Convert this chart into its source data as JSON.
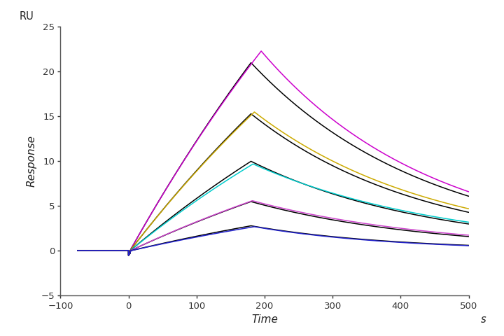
{
  "xlabel": "Time",
  "ylabel": "Response",
  "ylabel_top": "RU",
  "xlabel_right": "s",
  "xlim": [
    -100,
    500
  ],
  "ylim": [
    -5,
    25
  ],
  "xticks": [
    -100,
    0,
    100,
    200,
    300,
    400,
    500
  ],
  "yticks": [
    -5,
    0,
    5,
    10,
    15,
    20,
    25
  ],
  "background_color": "#ffffff",
  "curves": [
    {
      "color": "#000000",
      "peak": 21.0,
      "peak_time": 180,
      "end_val": 6.1,
      "tau_assoc": 3.5,
      "tau_dissoc": 0.8
    },
    {
      "color": "#cc00cc",
      "peak": 22.3,
      "peak_time": 195,
      "end_val": 6.6,
      "tau_assoc": 3.0,
      "tau_dissoc": 0.75
    },
    {
      "color": "#000000",
      "peak": 15.3,
      "peak_time": 180,
      "end_val": 4.3,
      "tau_assoc": 3.5,
      "tau_dissoc": 0.8
    },
    {
      "color": "#ccaa00",
      "peak": 15.5,
      "peak_time": 185,
      "end_val": 4.7,
      "tau_assoc": 3.2,
      "tau_dissoc": 0.78
    },
    {
      "color": "#000000",
      "peak": 10.0,
      "peak_time": 180,
      "end_val": 3.0,
      "tau_assoc": 3.5,
      "tau_dissoc": 0.8
    },
    {
      "color": "#00cccc",
      "peak": 9.7,
      "peak_time": 183,
      "end_val": 3.2,
      "tau_assoc": 3.3,
      "tau_dissoc": 0.77
    },
    {
      "color": "#000000",
      "peak": 5.5,
      "peak_time": 180,
      "end_val": 1.6,
      "tau_assoc": 3.5,
      "tau_dissoc": 0.8
    },
    {
      "color": "#cc44cc",
      "peak": 5.6,
      "peak_time": 182,
      "end_val": 1.75,
      "tau_assoc": 3.4,
      "tau_dissoc": 0.78
    },
    {
      "color": "#000000",
      "peak": 2.8,
      "peak_time": 180,
      "end_val": 0.62,
      "tau_assoc": 3.5,
      "tau_dissoc": 0.8
    },
    {
      "color": "#2222cc",
      "peak": 2.7,
      "peak_time": 185,
      "end_val": 0.58,
      "tau_assoc": 3.3,
      "tau_dissoc": 0.78
    }
  ]
}
